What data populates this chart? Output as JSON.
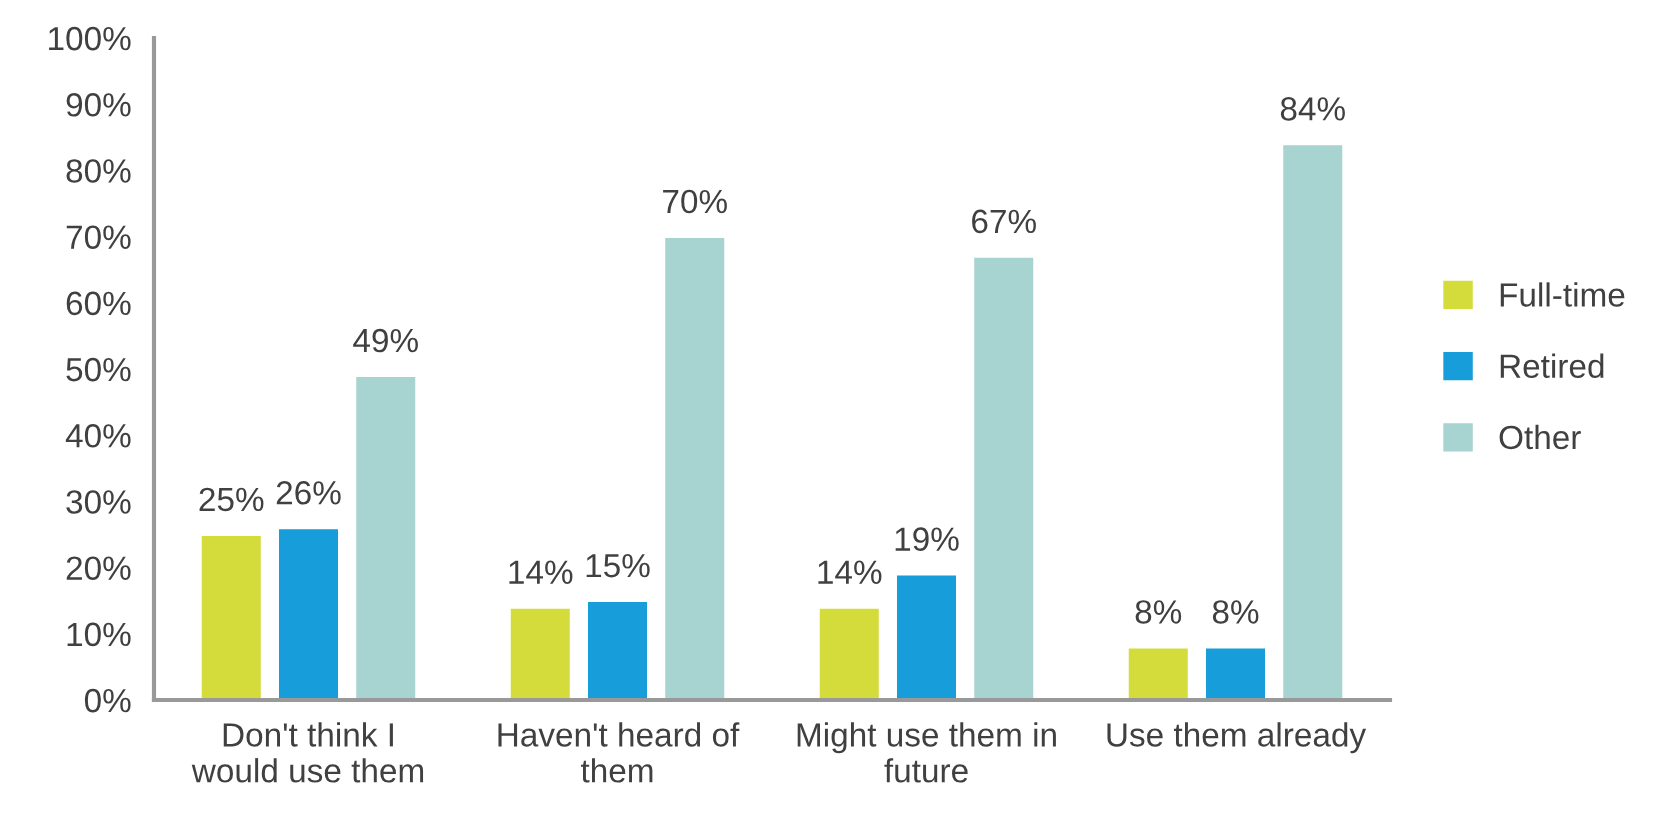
{
  "chart_data": {
    "type": "bar",
    "categories": [
      "Don't think I\nwould use them",
      "Haven't heard of\nthem",
      "Might use them in\nfuture",
      "Use them already"
    ],
    "series": [
      {
        "name": "Full-time",
        "color": "#d4dc3c",
        "values": [
          25,
          14,
          14,
          8
        ],
        "value_labels": [
          "25%",
          "14%",
          "14%",
          "8%"
        ]
      },
      {
        "name": "Retired",
        "color": "#179dd9",
        "values": [
          26,
          15,
          19,
          8
        ],
        "value_labels": [
          "26%",
          "15%",
          "19%",
          "8%"
        ]
      },
      {
        "name": "Other",
        "color": "#a7d3d0",
        "values": [
          49,
          70,
          67,
          84
        ],
        "value_labels": [
          "49%",
          "70%",
          "67%",
          "84%"
        ]
      }
    ],
    "ylim": [
      0,
      100
    ],
    "yticks": [
      {
        "value": 0,
        "label": "0%"
      },
      {
        "value": 10,
        "label": "10%"
      },
      {
        "value": 20,
        "label": "20%"
      },
      {
        "value": 30,
        "label": "30%"
      },
      {
        "value": 40,
        "label": "40%"
      },
      {
        "value": 50,
        "label": "50%"
      },
      {
        "value": 60,
        "label": "60%"
      },
      {
        "value": 70,
        "label": "70%"
      },
      {
        "value": 80,
        "label": "80%"
      },
      {
        "value": 90,
        "label": "90%"
      },
      {
        "value": 100,
        "label": "100%"
      }
    ],
    "grid": false,
    "legend": "right"
  }
}
